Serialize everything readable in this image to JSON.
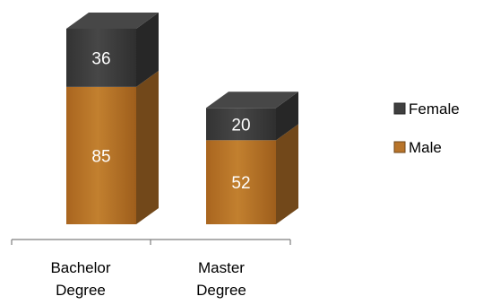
{
  "chart_data": {
    "type": "bar",
    "stacked": true,
    "three_d": true,
    "categories": [
      [
        "Bachelor",
        "Degree"
      ],
      [
        "Master",
        "Degree"
      ]
    ],
    "series": [
      {
        "name": "Male",
        "values": [
          85,
          52
        ],
        "color": "#B8742A"
      },
      {
        "name": "Female",
        "values": [
          36,
          20
        ],
        "color": "#3F3F3F"
      }
    ],
    "legend": {
      "position": "right",
      "order": [
        "Female",
        "Male"
      ]
    },
    "grid": false,
    "ylim": [
      0,
      121
    ],
    "title": "",
    "xlabel": "",
    "ylabel": ""
  }
}
